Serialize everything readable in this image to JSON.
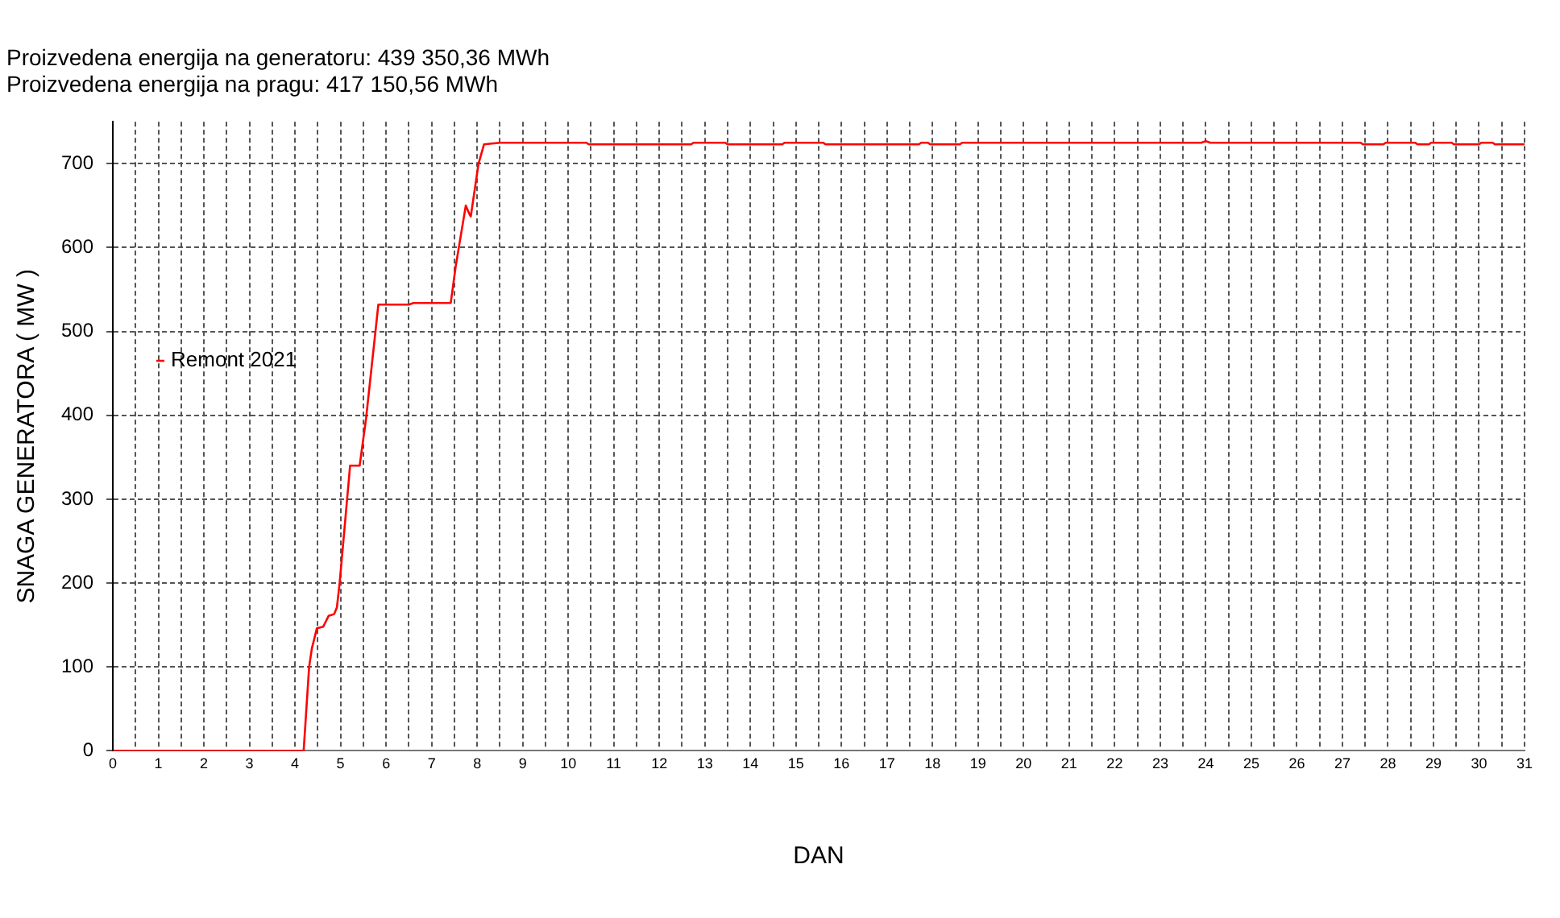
{
  "chart_data": {
    "type": "line",
    "title": "Proizvedena energija na generatoru: 439 350,36 MWh",
    "subtitle": "Proizvedena energija na pragu: 417 150,56 MWh",
    "xlabel": "DAN",
    "ylabel": "SNAGA GENERATORA ( MW )",
    "x": [
      0,
      4.19,
      4.31,
      4.37,
      4.48,
      4.62,
      4.74,
      4.86,
      4.92,
      4.98,
      5.21,
      5.42,
      5.56,
      5.83,
      6.5,
      6.6,
      7.42,
      7.53,
      7.75,
      7.83,
      7.86,
      8.03,
      8.15,
      8.5,
      10.4,
      10.45,
      12.7,
      12.75,
      13.45,
      13.5,
      14.7,
      14.75,
      15.6,
      15.65,
      16.4,
      16.45,
      17.7,
      17.75,
      17.9,
      17.95,
      18.6,
      18.65,
      23.9,
      24.0,
      24.1,
      27.4,
      27.45,
      27.9,
      27.95,
      28.6,
      28.65,
      28.9,
      28.95,
      29.4,
      29.45,
      30.0,
      30.05,
      30.3,
      30.35,
      31
    ],
    "series": [
      {
        "name": "Remont 2021",
        "color": "#ff0000",
        "values": [
          0,
          0,
          100,
          122,
          146,
          148,
          161,
          163,
          171,
          200,
          340,
          340,
          396,
          532,
          532,
          534,
          534,
          578,
          650,
          640,
          637,
          700,
          723,
          725,
          725,
          723,
          723,
          725,
          725,
          723,
          723,
          725,
          725,
          723,
          723,
          723,
          723,
          725,
          725,
          723,
          723,
          725,
          725,
          727,
          725,
          725,
          723,
          723,
          725,
          725,
          723,
          723,
          725,
          725,
          723,
          723,
          725,
          725,
          723,
          723
        ]
      }
    ],
    "xlim": [
      0,
      31
    ],
    "xticks": [
      0,
      {
        "value": 0.5,
        "label": null
      },
      1,
      {
        "value": 1.5,
        "label": null
      },
      2,
      {
        "value": 2.5,
        "label": null
      },
      3,
      {
        "value": 3.5,
        "label": null
      },
      4,
      {
        "value": 4.5,
        "label": null
      },
      5,
      {
        "value": 5.5,
        "label": null
      },
      6,
      {
        "value": 6.5,
        "label": null
      },
      7,
      {
        "value": 7.5,
        "label": null
      },
      8,
      {
        "value": 8.5,
        "label": null
      },
      9,
      {
        "value": 9.5,
        "label": null
      },
      10,
      {
        "value": 10.5,
        "label": null
      },
      11,
      {
        "value": 11.5,
        "label": null
      },
      12,
      {
        "value": 12.5,
        "label": null
      },
      13,
      {
        "value": 13.5,
        "label": null
      },
      14,
      {
        "value": 14.5,
        "label": null
      },
      15,
      {
        "value": 15.5,
        "label": null
      },
      16,
      {
        "value": 16.5,
        "label": null
      },
      17,
      {
        "value": 17.5,
        "label": null
      },
      18,
      {
        "value": 18.5,
        "label": null
      },
      19,
      {
        "value": 19.5,
        "label": null
      },
      20,
      {
        "value": 20.5,
        "label": null
      },
      21,
      {
        "value": 21.5,
        "label": null
      },
      22,
      {
        "value": 22.5,
        "label": null
      },
      23,
      {
        "value": 23.5,
        "label": null
      },
      24,
      {
        "value": 24.5,
        "label": null
      },
      25,
      {
        "value": 25.5,
        "label": null
      },
      26,
      {
        "value": 26.5,
        "label": null
      },
      27,
      {
        "value": 27.5,
        "label": null
      },
      28,
      {
        "value": 28.5,
        "label": null
      },
      29,
      {
        "value": 29.5,
        "label": null
      },
      30,
      {
        "value": 30.5,
        "label": null
      },
      31
    ],
    "ylim": [
      0,
      750
    ],
    "yticks": [
      0,
      100,
      200,
      300,
      400,
      500,
      600,
      700
    ],
    "grid": true,
    "legend": "left",
    "marker": "none",
    "line_style": "solid"
  }
}
